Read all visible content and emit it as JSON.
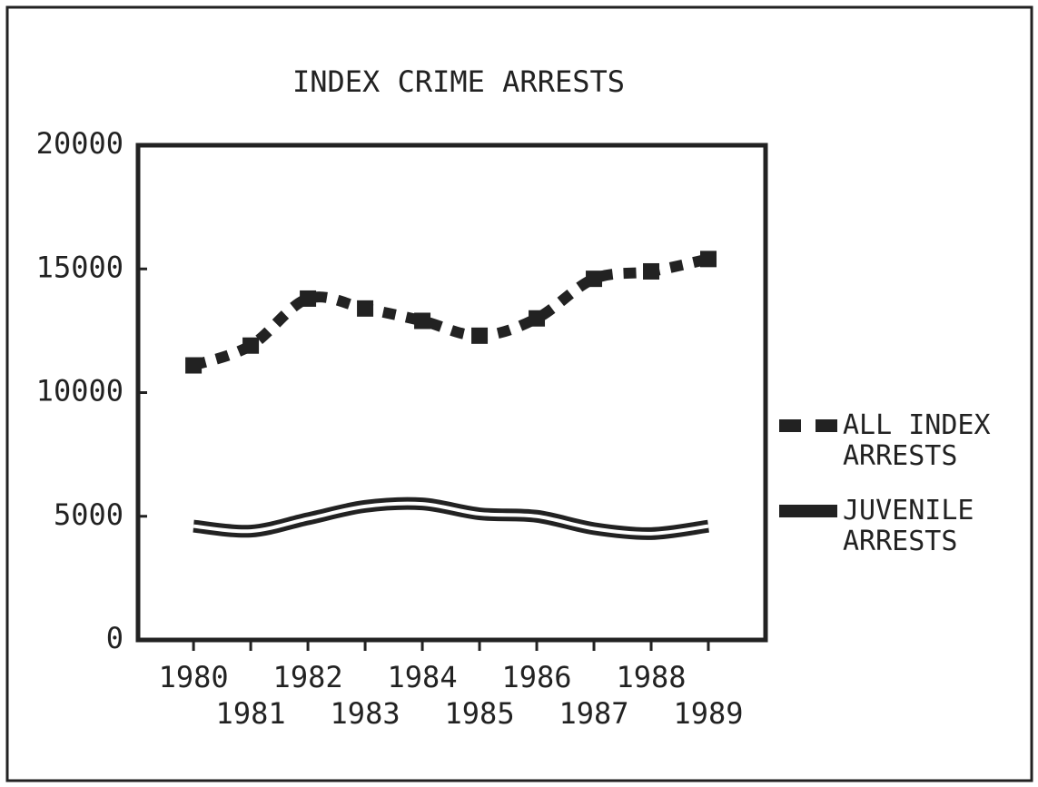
{
  "chart_data": {
    "type": "line",
    "title": "INDEX CRIME ARRESTS",
    "x": [
      1980,
      1981,
      1982,
      1983,
      1984,
      1985,
      1986,
      1987,
      1988,
      1989
    ],
    "series": [
      {
        "name": "ALL INDEX ARRESTS",
        "color": "#222222",
        "values": [
          11100,
          11900,
          13800,
          13400,
          12900,
          12300,
          13000,
          14600,
          14900,
          15400
        ]
      },
      {
        "name": "JUVENILE ARRESTS",
        "color": "#222222",
        "values": [
          4600,
          4400,
          4900,
          5400,
          5500,
          5100,
          5000,
          4500,
          4300,
          4600
        ]
      }
    ],
    "xlim": [
      1979.03,
      1990
    ],
    "xticks": [
      1980,
      1981,
      1982,
      1983,
      1984,
      1985,
      1986,
      1987,
      1988,
      1989
    ],
    "ylim": [
      0,
      20000
    ],
    "yticks": [
      0,
      5000,
      10000,
      15000,
      20000
    ],
    "legend": "right"
  }
}
